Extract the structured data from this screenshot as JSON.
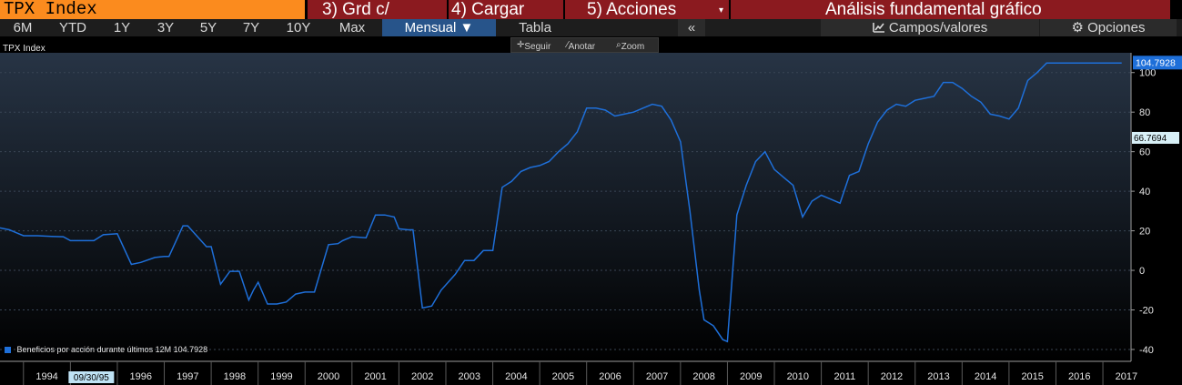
{
  "header": {
    "ticker": "TPX Index",
    "buttons": [
      {
        "label": "3) Grd c/"
      },
      {
        "label": "4) Cargar"
      },
      {
        "label": "5) Acciones",
        "caret": "▾"
      },
      {
        "label": "Análisis fundamental gráfico"
      }
    ]
  },
  "toolbar": {
    "ranges": [
      "6M",
      "YTD",
      "1Y",
      "3Y",
      "5Y",
      "7Y",
      "10Y",
      "Max"
    ],
    "period": "Mensual ▼",
    "table": "Tabla",
    "collapse": "«",
    "fields": "Campos/valores",
    "options": "Opciones"
  },
  "tools": {
    "follow": "Seguir",
    "annotate": "Anotar",
    "zoom": "Zoom"
  },
  "chart_label": "TPX Index",
  "legend": "Beneficios por acción durante últimos 12M 104.7928",
  "colors": {
    "line": "#1e6fd9",
    "background_top": "#273445",
    "background_bottom": "#000000",
    "header_orange": "#fb8b1e",
    "header_red": "#8b1a1f",
    "selected_tab": "#27548a"
  },
  "chart_data": {
    "type": "line",
    "series": [
      {
        "name": "Beneficios por acción durante últimos 12M",
        "x": [
          1993.5,
          1993.7,
          1994.0,
          1994.3,
          1994.6,
          1994.85,
          1995.0,
          1995.5,
          1995.7,
          1996.0,
          1996.3,
          1996.5,
          1996.8,
          1997.0,
          1997.1,
          1997.4,
          1997.5,
          1997.9,
          1998.0,
          1998.2,
          1998.4,
          1998.6,
          1998.8,
          1998.9,
          1999.0,
          1999.2,
          1999.4,
          1999.6,
          1999.8,
          2000.0,
          2000.2,
          2000.5,
          2000.7,
          2000.8,
          2001.0,
          2001.3,
          2001.5,
          2001.7,
          2001.9,
          2002.0,
          2002.2,
          2002.3,
          2002.5,
          2002.7,
          2002.9,
          2003.2,
          2003.4,
          2003.6,
          2003.8,
          2004.0,
          2004.2,
          2004.4,
          2004.6,
          2004.8,
          2005.0,
          2005.2,
          2005.4,
          2005.6,
          2005.8,
          2006.0,
          2006.2,
          2006.4,
          2006.6,
          2006.8,
          2007.0,
          2007.2,
          2007.4,
          2007.6,
          2007.8,
          2008.0,
          2008.2,
          2008.4,
          2008.5,
          2008.7,
          2008.9,
          2009.0,
          2009.2,
          2009.4,
          2009.6,
          2009.8,
          2010.0,
          2010.2,
          2010.4,
          2010.6,
          2010.8,
          2011.0,
          2011.2,
          2011.4,
          2011.6,
          2011.8,
          2012.0,
          2012.2,
          2012.4,
          2012.6,
          2012.8,
          2013.0,
          2013.2,
          2013.4,
          2013.6,
          2013.8,
          2014.0,
          2014.2,
          2014.4,
          2014.6,
          2014.8,
          2015.0,
          2015.2,
          2015.4,
          2015.6,
          2015.8,
          2016.0,
          2016.2,
          2016.4,
          2016.6,
          2016.8,
          2017.0,
          2017.2,
          2017.4
        ],
        "values": [
          21.5,
          20.5,
          17.5,
          17.5,
          17.2,
          17.0,
          15.0,
          15.0,
          18.0,
          18.5,
          3.0,
          4.0,
          6.5,
          7.0,
          7.0,
          22.5,
          22.5,
          12.0,
          12.0,
          -7.0,
          -0.5,
          -0.5,
          -15.0,
          -10.0,
          -6.0,
          -17.0,
          -17.0,
          -16.0,
          -12.0,
          -11.0,
          -11.0,
          13.0,
          13.5,
          15.0,
          17.0,
          16.5,
          28.0,
          28.0,
          27.0,
          21.0,
          20.5,
          20.5,
          -19.0,
          -18.0,
          -10.0,
          -2.0,
          5.0,
          5.0,
          10.0,
          10.0,
          42.0,
          45.0,
          50.0,
          52.0,
          53.0,
          55.0,
          60.0,
          64.0,
          70.0,
          82.0,
          82.0,
          81.0,
          78.0,
          79.0,
          80.0,
          82.0,
          84.0,
          83.0,
          76.0,
          65.0,
          30.0,
          -10.0,
          -25.0,
          -28.0,
          -35.0,
          -36.0,
          28.0,
          43.0,
          55.0,
          60.0,
          51.0,
          47.0,
          43.0,
          27.0,
          35.0,
          38.0,
          36.0,
          34.0,
          48.0,
          50.0,
          64.0,
          75.0,
          81.0,
          84.0,
          83.0,
          86.0,
          87.0,
          88.0,
          95.0,
          95.0,
          92.0,
          88.0,
          85.0,
          79.0,
          78.0,
          76.5,
          82.0,
          96.0,
          100.0,
          104.8,
          104.8,
          104.8,
          104.8,
          104.8,
          104.8,
          104.8,
          104.8,
          104.8
        ]
      }
    ],
    "xlim": [
      1993.5,
      2017.6
    ],
    "ylim": [
      -46,
      110
    ],
    "yticks": [
      -40,
      -20,
      0,
      20,
      40,
      60,
      80,
      100
    ],
    "xticks": [
      "1994",
      "1996",
      "1997",
      "1998",
      "1999",
      "2000",
      "2001",
      "2002",
      "2003",
      "2004",
      "2005",
      "2006",
      "2007",
      "2008",
      "2009",
      "2010",
      "2011",
      "2012",
      "2013",
      "2014",
      "2015",
      "2016",
      "2017"
    ],
    "last_value_label": "104.7928",
    "secondary_label": "66.7694",
    "crosshair_date": "09/30/95",
    "grid": true,
    "legend_position": "bottom-left"
  }
}
